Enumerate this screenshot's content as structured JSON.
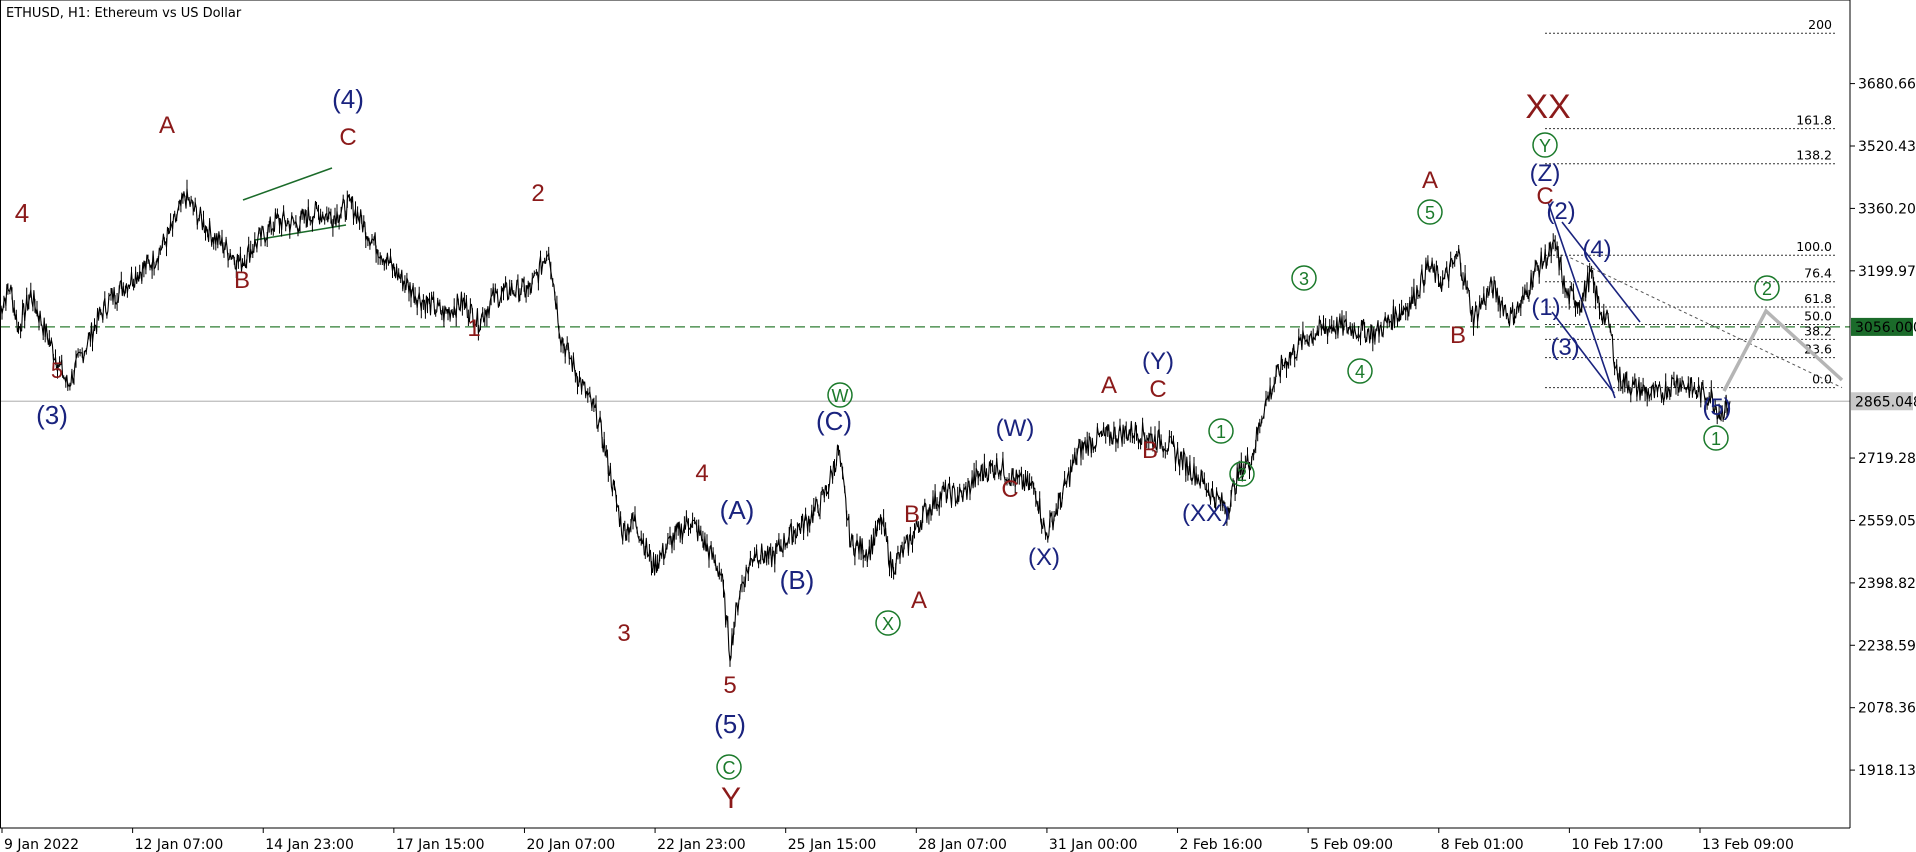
{
  "header": {
    "title": "ETHUSD, H1:  Ethereum vs US Dollar"
  },
  "chart_data": {
    "type": "line",
    "symbol": "ETHUSD",
    "timeframe": "H1",
    "description": "Ethereum vs US Dollar",
    "title": "ETHUSD, H1:  Ethereum vs US Dollar",
    "xlabel": "",
    "ylabel": "",
    "ylim": [
      1790,
      3885
    ],
    "y_ticks": [
      "3680.660",
      "3520.430",
      "3360.200",
      "3199.970",
      "2719.280",
      "2559.050",
      "2398.820",
      "2238.590",
      "2078.360",
      "1918.130"
    ],
    "x_ticks": [
      "9 Jan 2022",
      "12 Jan 07:00",
      "14 Jan 23:00",
      "17 Jan 15:00",
      "20 Jan 07:00",
      "22 Jan 23:00",
      "25 Jan 15:00",
      "28 Jan 07:00",
      "31 Jan 00:00",
      "2 Feb 16:00",
      "5 Feb 09:00",
      "8 Feb 01:00",
      "10 Feb 17:00",
      "13 Feb 09:00"
    ],
    "series": [
      {
        "x": [
          0,
          8,
          15,
          25,
          40,
          55,
          70,
          80,
          90,
          110,
          125,
          140,
          150,
          170,
          195,
          210,
          225,
          240,
          255,
          270,
          285,
          300,
          320,
          340,
          360,
          375,
          388,
          400,
          415,
          430,
          440,
          445,
          455,
          470,
          485,
          495,
          505,
          515,
          530,
          545,
          560,
          575,
          585,
          592,
          600,
          612,
          625,
          640,
          655,
          665,
          672,
          680,
          690,
          705,
          715,
          723,
          735,
          750,
          765,
          780,
          795,
          810,
          825,
          840,
          848,
          860,
          875,
          890,
          905,
          920,
          935,
          945,
          960,
          975,
          985,
          995,
          1005,
          1015,
          1025,
          1040,
          1060,
          1080,
          1100,
          1115,
          1130,
          1145,
          1158,
          1170,
          1183,
          1195,
          1210,
          1225,
          1235,
          1245,
          1258,
          1262,
          1270,
          1282,
          1290,
          1298,
          1305,
          1312,
          1325,
          1345,
          1360,
          1375,
          1387,
          1395,
          1403
        ],
        "y": [
          3100,
          3160,
          3050,
          3140,
          3020,
          2905,
          3010,
          3080,
          3130,
          3190,
          3230,
          3310,
          3390,
          3300,
          3220,
          3280,
          3330,
          3320,
          3350,
          3340,
          3370,
          3290,
          3200,
          3130,
          3090,
          3120,
          3070,
          3130,
          3150,
          3150,
          3220,
          3260,
          3030,
          2920,
          2820,
          2680,
          2530,
          2560,
          2440,
          2510,
          2560,
          2480,
          2420,
          2220,
          2380,
          2480,
          2460,
          2520,
          2560,
          2600,
          2650,
          2740,
          2500,
          2480,
          2560,
          2440,
          2490,
          2580,
          2630,
          2620,
          2680,
          2700,
          2660,
          2640,
          2520,
          2610,
          2740,
          2770,
          2780,
          2790,
          2770,
          2760,
          2710,
          2660,
          2620,
          2590,
          2680,
          2720,
          2850,
          2960,
          3030,
          3060,
          3050,
          3040,
          3080,
          3120,
          3210,
          3170,
          3240,
          3080,
          3160,
          3080,
          3120,
          3200,
          3250,
          3260,
          3140,
          3120,
          3190,
          3100,
          3060,
          2930,
          2900,
          2880,
          2920,
          2890,
          2880,
          2835,
          2865
        ]
      }
    ],
    "levels": [
      {
        "label": "3056.000",
        "value": 3056.0,
        "style": "dashed",
        "color": "#2e7d32"
      },
      {
        "label": "2865.048",
        "value": 2865.048,
        "style": "solid",
        "color": "#bbbbbb"
      }
    ],
    "fibonacci": [
      {
        "label": "200",
        "value": 3810
      },
      {
        "label": "161.8",
        "value": 3565
      },
      {
        "label": "138.2",
        "value": 3475
      },
      {
        "label": "100.0",
        "value": 3240
      },
      {
        "label": "76.4",
        "value": 3172
      },
      {
        "label": "61.8",
        "value": 3107
      },
      {
        "label": "50.0",
        "value": 3062
      },
      {
        "label": "38.2",
        "value": 3024
      },
      {
        "label": "23.6",
        "value": 2977
      },
      {
        "label": "0.0",
        "value": 2900
      }
    ],
    "wave_labels": [
      {
        "text": "4",
        "color": "#8b1a1a"
      },
      {
        "text": "5",
        "color": "#8b1a1a"
      },
      {
        "text": "(3)",
        "color": "#1a237e"
      },
      {
        "text": "A",
        "color": "#8b1a1a"
      },
      {
        "text": "B",
        "color": "#8b1a1a"
      },
      {
        "text": "(4)",
        "color": "#1a237e"
      },
      {
        "text": "C",
        "color": "#8b1a1a"
      },
      {
        "text": "1",
        "color": "#8b1a1a"
      },
      {
        "text": "2",
        "color": "#8b1a1a"
      },
      {
        "text": "3",
        "color": "#8b1a1a"
      },
      {
        "text": "4",
        "color": "#8b1a1a"
      },
      {
        "text": "5",
        "color": "#8b1a1a"
      },
      {
        "text": "(5)",
        "color": "#1a237e"
      },
      {
        "text": "C",
        "color": "#1b7a2b",
        "circled": true
      },
      {
        "text": "Y",
        "color": "#8b1a1a"
      },
      {
        "text": "(A)",
        "color": "#1a237e"
      },
      {
        "text": "(B)",
        "color": "#1a237e"
      },
      {
        "text": "W",
        "color": "#1b7a2b",
        "circled": true
      },
      {
        "text": "(C)",
        "color": "#1a237e"
      },
      {
        "text": "X",
        "color": "#1b7a2b",
        "circled": true
      },
      {
        "text": "A",
        "color": "#8b1a1a"
      },
      {
        "text": "B",
        "color": "#8b1a1a"
      },
      {
        "text": "C",
        "color": "#8b1a1a"
      },
      {
        "text": "(W)",
        "color": "#1a237e"
      },
      {
        "text": "(X)",
        "color": "#1a237e"
      },
      {
        "text": "A",
        "color": "#8b1a1a"
      },
      {
        "text": "(Y)",
        "color": "#1a237e"
      },
      {
        "text": "C",
        "color": "#8b1a1a"
      },
      {
        "text": "B",
        "color": "#8b1a1a"
      },
      {
        "text": "(XX)",
        "color": "#1a237e"
      },
      {
        "text": "1",
        "color": "#1b7a2b",
        "circled": true
      },
      {
        "text": "2",
        "color": "#1b7a2b",
        "circled": true
      },
      {
        "text": "3",
        "color": "#1b7a2b",
        "circled": true
      },
      {
        "text": "4",
        "color": "#1b7a2b",
        "circled": true
      },
      {
        "text": "A",
        "color": "#8b1a1a"
      },
      {
        "text": "5",
        "color": "#1b7a2b",
        "circled": true
      },
      {
        "text": "B",
        "color": "#8b1a1a"
      },
      {
        "text": "XX",
        "color": "#8b1a1a"
      },
      {
        "text": "Y",
        "color": "#1b7a2b",
        "circled": true
      },
      {
        "text": "(Z)",
        "color": "#1a237e"
      },
      {
        "text": "C",
        "color": "#8b1a1a"
      },
      {
        "text": "(2)",
        "color": "#1a237e"
      },
      {
        "text": "(4)",
        "color": "#1a237e"
      },
      {
        "text": "(1)",
        "color": "#1a237e"
      },
      {
        "text": "(3)",
        "color": "#1a237e"
      },
      {
        "text": "(5)",
        "color": "#1a237e"
      },
      {
        "text": "1",
        "color": "#1b7a2b",
        "circled": true
      },
      {
        "text": "2",
        "color": "#1b7a2b",
        "circled": true
      }
    ],
    "grid": false,
    "legend": "none"
  }
}
